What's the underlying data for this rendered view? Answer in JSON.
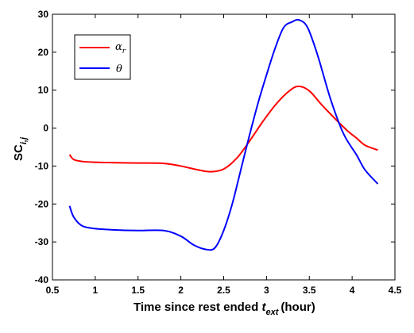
{
  "chart_data": {
    "type": "line",
    "xlabel_main": "Time since rest ended",
    "xlabel_symbol": "t",
    "xlabel_sub": "ext",
    "xlabel_unit": "(hour)",
    "ylabel_main": "SC",
    "ylabel_sub": "i,j",
    "xlim": [
      0.5,
      4.5
    ],
    "ylim": [
      -40,
      30
    ],
    "xticks": [
      0.5,
      1,
      1.5,
      2,
      2.5,
      3,
      3.5,
      4,
      4.5
    ],
    "xtick_labels": [
      "0.5",
      "1",
      "1.5",
      "2",
      "2.5",
      "3",
      "3.5",
      "4",
      "4.5"
    ],
    "yticks": [
      -40,
      -30,
      -20,
      -10,
      0,
      10,
      20,
      30
    ],
    "ytick_labels": [
      "-40",
      "-30",
      "-20",
      "-10",
      "0",
      "10",
      "20",
      "30"
    ],
    "grid": false,
    "legend_position": "top-left",
    "series": [
      {
        "name": "α",
        "name_sub": "r",
        "color": "#ff0000",
        "x": [
          0.7,
          0.75,
          0.85,
          1.0,
          1.2,
          1.5,
          1.8,
          2.0,
          2.2,
          2.35,
          2.5,
          2.65,
          2.8,
          2.95,
          3.1,
          3.25,
          3.37,
          3.5,
          3.65,
          3.8,
          3.95,
          4.05,
          4.15,
          4.3
        ],
        "y": [
          -7.0,
          -8.3,
          -8.8,
          -9.0,
          -9.1,
          -9.2,
          -9.3,
          -10.0,
          -11.0,
          -11.5,
          -10.8,
          -8.0,
          -3.5,
          1.5,
          6.0,
          9.5,
          11.0,
          9.8,
          6.0,
          2.5,
          -0.8,
          -2.6,
          -4.5,
          -5.8
        ]
      },
      {
        "name": "θ",
        "name_sub": "",
        "color": "#0000ff",
        "x": [
          0.7,
          0.75,
          0.85,
          1.0,
          1.2,
          1.5,
          1.8,
          2.0,
          2.15,
          2.3,
          2.4,
          2.5,
          2.6,
          2.7,
          2.8,
          2.9,
          3.0,
          3.1,
          3.2,
          3.3,
          3.38,
          3.48,
          3.6,
          3.75,
          3.9,
          4.05,
          4.15,
          4.3
        ],
        "y": [
          -20.5,
          -23.5,
          -25.8,
          -26.5,
          -26.8,
          -27.0,
          -27.0,
          -28.5,
          -30.8,
          -32.0,
          -31.5,
          -27.0,
          -20.0,
          -11.0,
          -2.0,
          6.5,
          14.0,
          21.0,
          26.5,
          28.0,
          28.5,
          26.5,
          19.0,
          7.5,
          -1.5,
          -7.0,
          -11.0,
          -14.7
        ]
      }
    ]
  }
}
